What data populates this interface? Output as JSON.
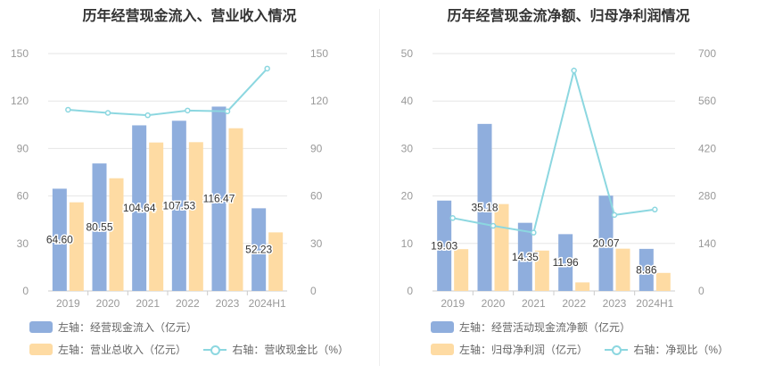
{
  "colors": {
    "blue": "#8faedd",
    "orange": "#fedba3",
    "line": "#8cd7e0"
  },
  "left": {
    "title": "历年经营现金流入、营业收入情况",
    "legend": {
      "bar1": "左轴：经营现金流入（亿元）",
      "bar2": "左轴：营业总收入（亿元）",
      "line": "右轴：营收现金比（%）"
    }
  },
  "right": {
    "title": "历年经营现金流净额、归母净利润情况",
    "legend": {
      "bar1": "左轴：经营活动现金流净额（亿元）",
      "bar2": "左轴：归母净利润（亿元）",
      "line": "右轴：净现比（%）"
    }
  },
  "chart_data": [
    {
      "type": "bar",
      "categories": [
        "2019",
        "2020",
        "2021",
        "2022",
        "2023",
        "2024H1"
      ],
      "series": [
        {
          "name": "左轴：经营现金流入（亿元）",
          "axis": "left",
          "values": [
            64.6,
            80.55,
            104.64,
            107.53,
            116.47,
            52.23
          ],
          "labels": [
            "64.60",
            "80.55",
            "104.64",
            "107.53",
            "116.47",
            "52.23"
          ]
        },
        {
          "name": "左轴：营业总收入（亿元）",
          "axis": "left",
          "values": [
            56.0,
            71.2,
            93.8,
            94.0,
            102.8,
            37.0
          ]
        },
        {
          "name": "右轴：营收现金比（%）",
          "axis": "right",
          "type": "line",
          "values": [
            114.5,
            112.5,
            111.0,
            114.0,
            113.5,
            140.5
          ]
        }
      ],
      "left_axis": {
        "min": 0,
        "max": 150,
        "ticks": [
          "0",
          "30",
          "60",
          "90",
          "120",
          "150"
        ]
      },
      "right_axis": {
        "min": 0,
        "max": 150,
        "ticks": [
          "0",
          "30",
          "60",
          "90",
          "120",
          "150"
        ]
      },
      "grid": true,
      "legend_position": "bottom"
    },
    {
      "type": "bar",
      "categories": [
        "2019",
        "2020",
        "2021",
        "2022",
        "2023",
        "2024H1"
      ],
      "series": [
        {
          "name": "左轴：经营活动现金流净额（亿元）",
          "axis": "left",
          "values": [
            19.03,
            35.18,
            14.35,
            11.96,
            20.07,
            8.86
          ],
          "labels": [
            "19.03",
            "35.18",
            "14.35",
            "11.96",
            "20.07",
            "8.86"
          ]
        },
        {
          "name": "左轴：归母净利润（亿元）",
          "axis": "left",
          "values": [
            8.8,
            18.3,
            8.5,
            1.8,
            8.9,
            3.8
          ]
        },
        {
          "name": "右轴：净现比（%）",
          "axis": "right",
          "type": "line",
          "values": [
            215,
            192,
            172,
            650,
            224,
            240
          ]
        }
      ],
      "left_axis": {
        "min": 0,
        "max": 50,
        "ticks": [
          "0",
          "10",
          "20",
          "30",
          "40",
          "50"
        ]
      },
      "right_axis": {
        "min": 0,
        "max": 700,
        "ticks": [
          "0",
          "140",
          "280",
          "420",
          "560",
          "700"
        ]
      },
      "grid": true,
      "legend_position": "bottom"
    }
  ]
}
